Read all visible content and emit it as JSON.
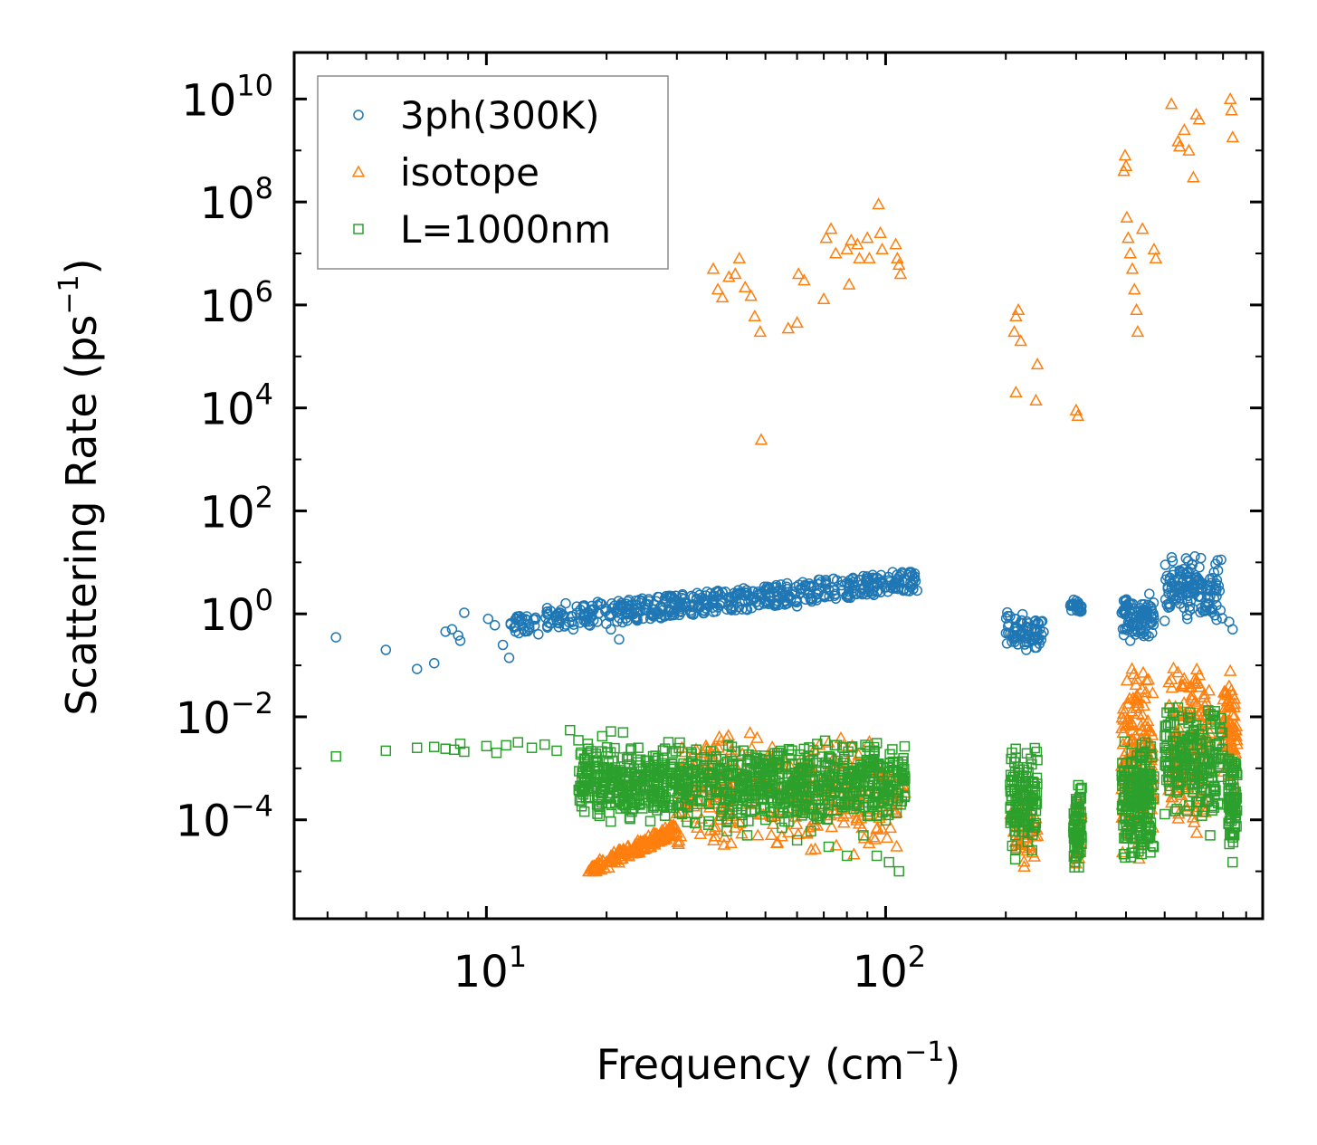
{
  "chart_data": {
    "type": "scatter",
    "title": "",
    "xlabel": "Frequency (cm",
    "xlabel_exponent": "−1",
    "xlabel_suffix": ")",
    "ylabel": "Scattering Rate (ps",
    "ylabel_exponent": "−1",
    "ylabel_suffix": ")",
    "xscale": "log",
    "yscale": "log",
    "xlim": [
      3.3,
      880
    ],
    "ylim": [
      1.2e-06,
      80000000000.0
    ],
    "x_ticks": [
      {
        "value": 10,
        "base": "10",
        "exp": "1"
      },
      {
        "value": 100,
        "base": "10",
        "exp": "2"
      }
    ],
    "y_ticks": [
      {
        "value": 0.0001,
        "base": "10",
        "exp": "−4"
      },
      {
        "value": 0.01,
        "base": "10",
        "exp": "−2"
      },
      {
        "value": 1,
        "base": "10",
        "exp": "0"
      },
      {
        "value": 100,
        "base": "10",
        "exp": "2"
      },
      {
        "value": 10000.0,
        "base": "10",
        "exp": "4"
      },
      {
        "value": 1000000.0,
        "base": "10",
        "exp": "6"
      },
      {
        "value": 100000000.0,
        "base": "10",
        "exp": "8"
      },
      {
        "value": 10000000000.0,
        "base": "10",
        "exp": "10"
      }
    ],
    "legend_position": "top-left",
    "series": [
      {
        "name": "3ph(300K)",
        "marker": "circle",
        "color": "#1f77b4",
        "points": [
          [
            4.2,
            0.35
          ],
          [
            5.6,
            0.2
          ],
          [
            6.7,
            0.085
          ],
          [
            7.4,
            0.11
          ],
          [
            7.9,
            0.45
          ],
          [
            8.2,
            0.5
          ],
          [
            8.5,
            0.38
          ],
          [
            8.6,
            0.3
          ],
          [
            8.8,
            1.05
          ],
          [
            10.1,
            0.8
          ],
          [
            10.5,
            0.6
          ],
          [
            11.0,
            0.25
          ],
          [
            11.4,
            0.14
          ],
          [
            12.1,
            0.9
          ],
          [
            12.8,
            0.55
          ],
          [
            13.5,
            0.4
          ],
          [
            14.2,
            1.3
          ],
          [
            15.0,
            0.75
          ],
          [
            15.8,
            1.6
          ],
          [
            16.5,
            0.5
          ],
          [
            17.2,
            1.2
          ],
          [
            18.0,
            0.9
          ],
          [
            19.0,
            1.7
          ],
          [
            20.5,
            0.5
          ],
          [
            21.5,
            0.32
          ],
          [
            22.8,
            1.4
          ],
          [
            24.5,
            1.8
          ],
          [
            26.0,
            1.0
          ],
          [
            28.0,
            2.0
          ],
          [
            31.0,
            2.4
          ],
          [
            34.0,
            1.5
          ],
          [
            38.0,
            2.8
          ],
          [
            42.0,
            2.2
          ],
          [
            45.0,
            1.2
          ],
          [
            50.0,
            3.0
          ],
          [
            55.0,
            2.5
          ],
          [
            60.0,
            1.4
          ],
          [
            65.0,
            3.5
          ],
          [
            72.0,
            3.0
          ],
          [
            80.0,
            4.0
          ],
          [
            88.0,
            3.2
          ],
          [
            95.0,
            5.0
          ],
          [
            102.0,
            4.5
          ],
          [
            110.0,
            6.0
          ],
          [
            118.0,
            4.8
          ],
          [
            205.0,
            0.9
          ],
          [
            212.0,
            0.8
          ],
          [
            218.0,
            0.4
          ],
          [
            225.0,
            0.2
          ],
          [
            232.0,
            0.3
          ],
          [
            245.0,
            0.7
          ],
          [
            300.0,
            1.5
          ],
          [
            395.0,
            1.8
          ],
          [
            410.0,
            0.3
          ],
          [
            420.0,
            0.6
          ],
          [
            455.0,
            1.5
          ],
          [
            520.0,
            4.0
          ],
          [
            545.0,
            2.0
          ],
          [
            570.0,
            0.8
          ],
          [
            595.0,
            13.0
          ],
          [
            615.0,
            3.0
          ],
          [
            650.0,
            1.2
          ],
          [
            725.0,
            0.7
          ],
          [
            740.0,
            0.5
          ]
        ],
        "bands": [
          {
            "x": [
              11.5,
              120
            ],
            "y": [
              0.4,
              6.5
            ],
            "n": 520
          },
          {
            "x": [
              200,
              250
            ],
            "y": [
              0.2,
              1.1
            ],
            "n": 70
          },
          {
            "x": [
              290,
              310
            ],
            "y": [
              1.0,
              2.0
            ],
            "n": 25
          },
          {
            "x": [
              390,
              470
            ],
            "y": [
              0.3,
              2.5
            ],
            "n": 90
          },
          {
            "x": [
              500,
              700
            ],
            "y": [
              0.6,
              15.0
            ],
            "n": 140
          }
        ]
      },
      {
        "name": "isotope",
        "marker": "triangle",
        "color": "#ff7f0e",
        "points": [
          [
            37.0,
            5000000.0
          ],
          [
            38.0,
            2000000.0
          ],
          [
            39.0,
            1400000.0
          ],
          [
            40.5,
            3500000.0
          ],
          [
            42.0,
            4000000.0
          ],
          [
            43.0,
            8000000.0
          ],
          [
            44.5,
            2200000.0
          ],
          [
            46.0,
            1500000.0
          ],
          [
            47.0,
            600000.0
          ],
          [
            48.5,
            300000.0
          ],
          [
            48.8,
            2400.0
          ],
          [
            57.0,
            350000.0
          ],
          [
            60.0,
            450000.0
          ],
          [
            60.5,
            4000000.0
          ],
          [
            62.5,
            3000000.0
          ],
          [
            70.0,
            1300000.0
          ],
          [
            71.0,
            20000000.0
          ],
          [
            73.0,
            30000000.0
          ],
          [
            75.0,
            10000000.0
          ],
          [
            80.0,
            12000000.0
          ],
          [
            81.0,
            2500000.0
          ],
          [
            82.0,
            18000000.0
          ],
          [
            85.0,
            15000000.0
          ],
          [
            86.0,
            8000000.0
          ],
          [
            90.0,
            20000000.0
          ],
          [
            91.0,
            8000000.0
          ],
          [
            96.0,
            90000000.0
          ],
          [
            97.0,
            25000000.0
          ],
          [
            98.0,
            12000000.0
          ],
          [
            106.0,
            15000000.0
          ],
          [
            107.0,
            8000000.0
          ],
          [
            108.0,
            6000000.0
          ],
          [
            109.0,
            4000000.0
          ],
          [
            210.0,
            300000.0
          ],
          [
            212.0,
            600000.0
          ],
          [
            215.0,
            800000.0
          ],
          [
            218.0,
            200000.0
          ],
          [
            212.0,
            20000.0
          ],
          [
            238.0,
            14000.0
          ],
          [
            240.0,
            70000.0
          ],
          [
            300.0,
            9000.0
          ],
          [
            303.0,
            7000.0
          ],
          [
            395.0,
            400000000.0
          ],
          [
            398.0,
            800000000.0
          ],
          [
            400.0,
            500000000.0
          ],
          [
            402.0,
            50000000.0
          ],
          [
            405.0,
            20000000.0
          ],
          [
            410.0,
            10000000.0
          ],
          [
            415.0,
            5000000.0
          ],
          [
            420.0,
            2000000.0
          ],
          [
            425.0,
            800000.0
          ],
          [
            428.0,
            300000.0
          ],
          [
            440.0,
            30000000.0
          ],
          [
            470.0,
            12000000.0
          ],
          [
            475.0,
            8000000.0
          ],
          [
            520.0,
            8000000000.0
          ],
          [
            540.0,
            1500000000.0
          ],
          [
            545.0,
            1200000000.0
          ],
          [
            560.0,
            2500000000.0
          ],
          [
            575.0,
            1000000000.0
          ],
          [
            590.0,
            300000000.0
          ],
          [
            600.0,
            5000000000.0
          ],
          [
            610.0,
            4000000000.0
          ],
          [
            730.0,
            10000000000.0
          ],
          [
            735.0,
            6000000000.0
          ],
          [
            740.0,
            1800000000.0
          ]
        ],
        "bands": [
          {
            "x": [
              18,
              30
            ],
            "y": [
              1e-05,
              0.0001
            ],
            "n": 160,
            "trend": "up"
          },
          {
            "x": [
              30,
              112
            ],
            "y": [
              2e-05,
              0.006
            ],
            "n": 340
          },
          {
            "x": [
              205,
              240
            ],
            "y": [
              1e-05,
              0.0003
            ],
            "n": 45
          },
          {
            "x": [
              295,
              310
            ],
            "y": [
              1e-05,
              0.0003
            ],
            "n": 25
          },
          {
            "x": [
              390,
              470
            ],
            "y": [
              1e-05,
              0.12
            ],
            "n": 170
          },
          {
            "x": [
              510,
              650
            ],
            "y": [
              5e-05,
              0.15
            ],
            "n": 170
          },
          {
            "x": [
              700,
              760
            ],
            "y": [
              0.0002,
              0.15
            ],
            "n": 70
          }
        ]
      },
      {
        "name": "L=1000nm",
        "marker": "square",
        "color": "#2ca02c",
        "points": [
          [
            4.2,
            0.0017
          ],
          [
            5.6,
            0.0022
          ],
          [
            6.7,
            0.0025
          ],
          [
            7.4,
            0.0026
          ],
          [
            7.9,
            0.0024
          ],
          [
            8.3,
            0.0023
          ],
          [
            8.6,
            0.003
          ],
          [
            8.8,
            0.0021
          ],
          [
            10.0,
            0.0027
          ],
          [
            10.6,
            0.002
          ],
          [
            11.2,
            0.0028
          ],
          [
            12.0,
            0.0032
          ],
          [
            13.0,
            0.0025
          ],
          [
            14.0,
            0.0029
          ],
          [
            15.0,
            0.0022
          ],
          [
            16.2,
            0.0055
          ],
          [
            17.0,
            0.0035
          ],
          [
            18.0,
            0.0024
          ],
          [
            19.5,
            0.0042
          ],
          [
            20.5,
            0.0052
          ],
          [
            22.0,
            0.005
          ],
          [
            24.0,
            0.0025
          ],
          [
            26.0,
            0.00038
          ],
          [
            28.0,
            0.00012
          ],
          [
            32.0,
            0.00018
          ],
          [
            36.0,
            8e-05
          ],
          [
            40.0,
            6e-05
          ],
          [
            45.0,
            5e-05
          ],
          [
            50.0,
            0.0001
          ],
          [
            55.0,
            7e-05
          ],
          [
            60.0,
            4e-05
          ],
          [
            65.0,
            6e-05
          ],
          [
            72.0,
            3e-05
          ],
          [
            80.0,
            2e-05
          ],
          [
            88.0,
            5e-05
          ],
          [
            95.0,
            2e-05
          ],
          [
            102.0,
            1.5e-05
          ],
          [
            108.0,
            1e-05
          ],
          [
            600.0,
            0.00022
          ],
          [
            620.0,
            0.00012
          ],
          [
            650.0,
            5e-05
          ],
          [
            740.0,
            1.5e-05
          ]
        ],
        "bands": [
          {
            "x": [
              17,
              112
            ],
            "y": [
              8e-05,
              0.0035
            ],
            "n": 950
          },
          {
            "x": [
              205,
              240
            ],
            "y": [
              1.5e-05,
              0.003
            ],
            "n": 130
          },
          {
            "x": [
              295,
              310
            ],
            "y": [
              1e-05,
              0.0005
            ],
            "n": 70
          },
          {
            "x": [
              390,
              470
            ],
            "y": [
              1.2e-05,
              0.004
            ],
            "n": 200
          },
          {
            "x": [
              500,
              700
            ],
            "y": [
              0.0001,
              0.02
            ],
            "n": 210
          },
          {
            "x": [
              720,
              760
            ],
            "y": [
              2e-05,
              0.0025
            ],
            "n": 80
          }
        ]
      }
    ]
  }
}
